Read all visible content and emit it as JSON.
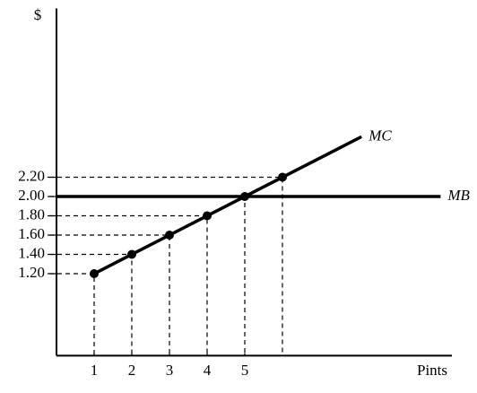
{
  "chart_data": {
    "type": "line",
    "x_label": "Pints",
    "y_label": "$",
    "xlim": [
      0,
      10.5
    ],
    "ylim": [
      0.35,
      3.95
    ],
    "xticks": [
      1,
      2,
      3,
      4,
      5
    ],
    "yticks": [
      {
        "value": 1.2,
        "label": "1.20"
      },
      {
        "value": 1.4,
        "label": "1.40"
      },
      {
        "value": 1.6,
        "label": "1.60"
      },
      {
        "value": 1.8,
        "label": "1.80"
      },
      {
        "value": 2.0,
        "label": "2.00"
      },
      {
        "value": 2.2,
        "label": "2.20"
      }
    ],
    "series": [
      {
        "name": "MC",
        "color": "#000000",
        "x": [
          1,
          2,
          3,
          4,
          5,
          6
        ],
        "values": [
          1.2,
          1.4,
          1.6,
          1.8,
          2.0,
          2.2
        ],
        "line_x": [
          1,
          8.1
        ],
        "line_values": [
          1.2,
          2.62
        ]
      },
      {
        "name": "MB",
        "color": "#000000",
        "x": [
          0,
          10.2
        ],
        "values": [
          2.0,
          2.0
        ]
      }
    ]
  }
}
